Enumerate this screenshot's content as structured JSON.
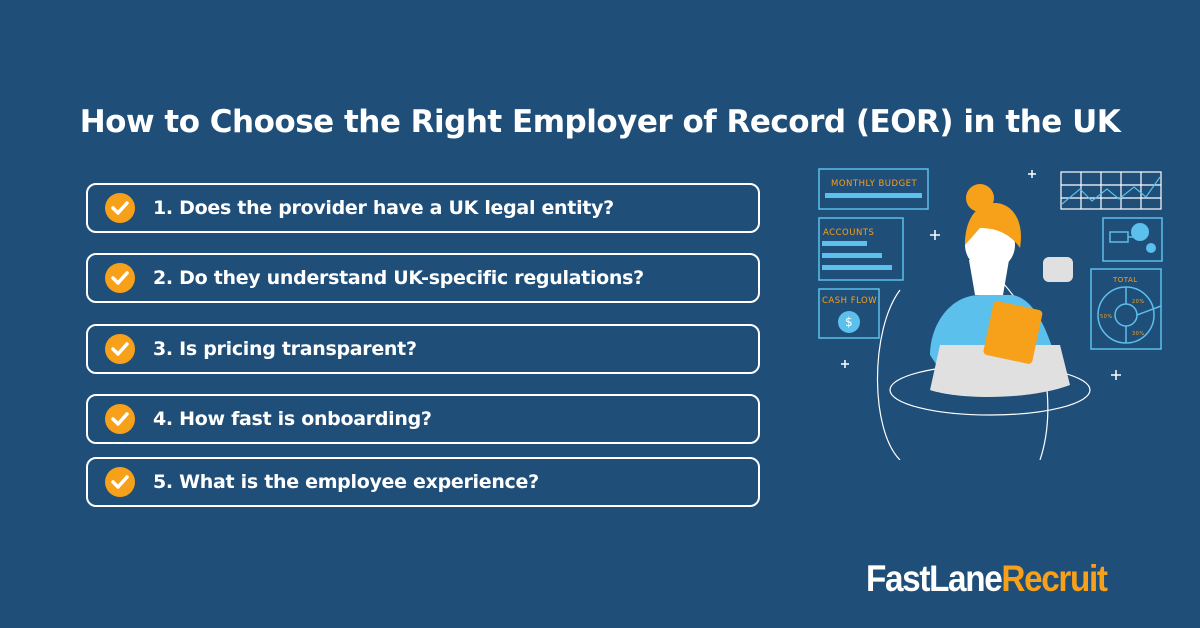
{
  "title": "How to Choose the Right Employer of Record (EOR) in the UK",
  "items": [
    {
      "label": "1. Does the provider have a UK legal entity?",
      "icon": "check-icon"
    },
    {
      "label": "2. Do they understand UK-specific regulations?",
      "icon": "check-icon"
    },
    {
      "label": "3. Is pricing transparent?",
      "icon": "check-icon"
    },
    {
      "label": "4. How fast is onboarding?",
      "icon": "check-icon"
    },
    {
      "label": "5. What is the employee experience?",
      "icon": "check-icon"
    }
  ],
  "illustration": {
    "monthly_budget": "MONTHLY BUDGET",
    "accounts": "ACCOUNTS",
    "cash_flow": "CASH FLOW",
    "total": "TOTAL",
    "pie": [
      "20%",
      "50%",
      "30%"
    ],
    "dollar": "$"
  },
  "logo": {
    "part1": "FastLane",
    "part2": "Recruit"
  },
  "colors": {
    "background": "#1f4e79",
    "accent": "#f7a01a",
    "light_blue": "#5bc0eb"
  }
}
